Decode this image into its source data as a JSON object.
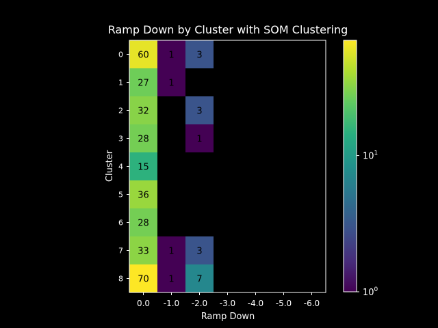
{
  "chart_data": {
    "type": "heatmap",
    "title": "Ramp Down by Cluster with SOM Clustering",
    "xlabel": "Ramp Down",
    "ylabel": "Cluster",
    "x_categories": [
      "0.0",
      "-1.0",
      "-2.0",
      "-3.0",
      "-4.0",
      "-5.0",
      "-6.0"
    ],
    "y_categories": [
      "0",
      "1",
      "2",
      "3",
      "4",
      "5",
      "6",
      "7",
      "8"
    ],
    "values": [
      [
        60,
        1,
        3,
        null,
        null,
        null,
        null
      ],
      [
        27,
        1,
        null,
        null,
        null,
        null,
        null
      ],
      [
        32,
        null,
        3,
        null,
        null,
        null,
        null
      ],
      [
        28,
        null,
        1,
        null,
        null,
        null,
        null
      ],
      [
        15,
        null,
        null,
        null,
        null,
        null,
        null
      ],
      [
        36,
        null,
        null,
        null,
        null,
        null,
        null
      ],
      [
        28,
        null,
        null,
        null,
        null,
        null,
        null
      ],
      [
        33,
        1,
        3,
        null,
        null,
        null,
        null
      ],
      [
        70,
        1,
        7,
        null,
        null,
        null,
        null
      ]
    ],
    "colormap": "viridis",
    "color_scale": "log",
    "color_range": [
      1,
      70
    ],
    "colorbar_ticks": [
      {
        "value": 1,
        "label": "10",
        "exponent": "0"
      },
      {
        "value": 10,
        "label": "10",
        "exponent": "1"
      }
    ],
    "background_color": "#000000"
  }
}
